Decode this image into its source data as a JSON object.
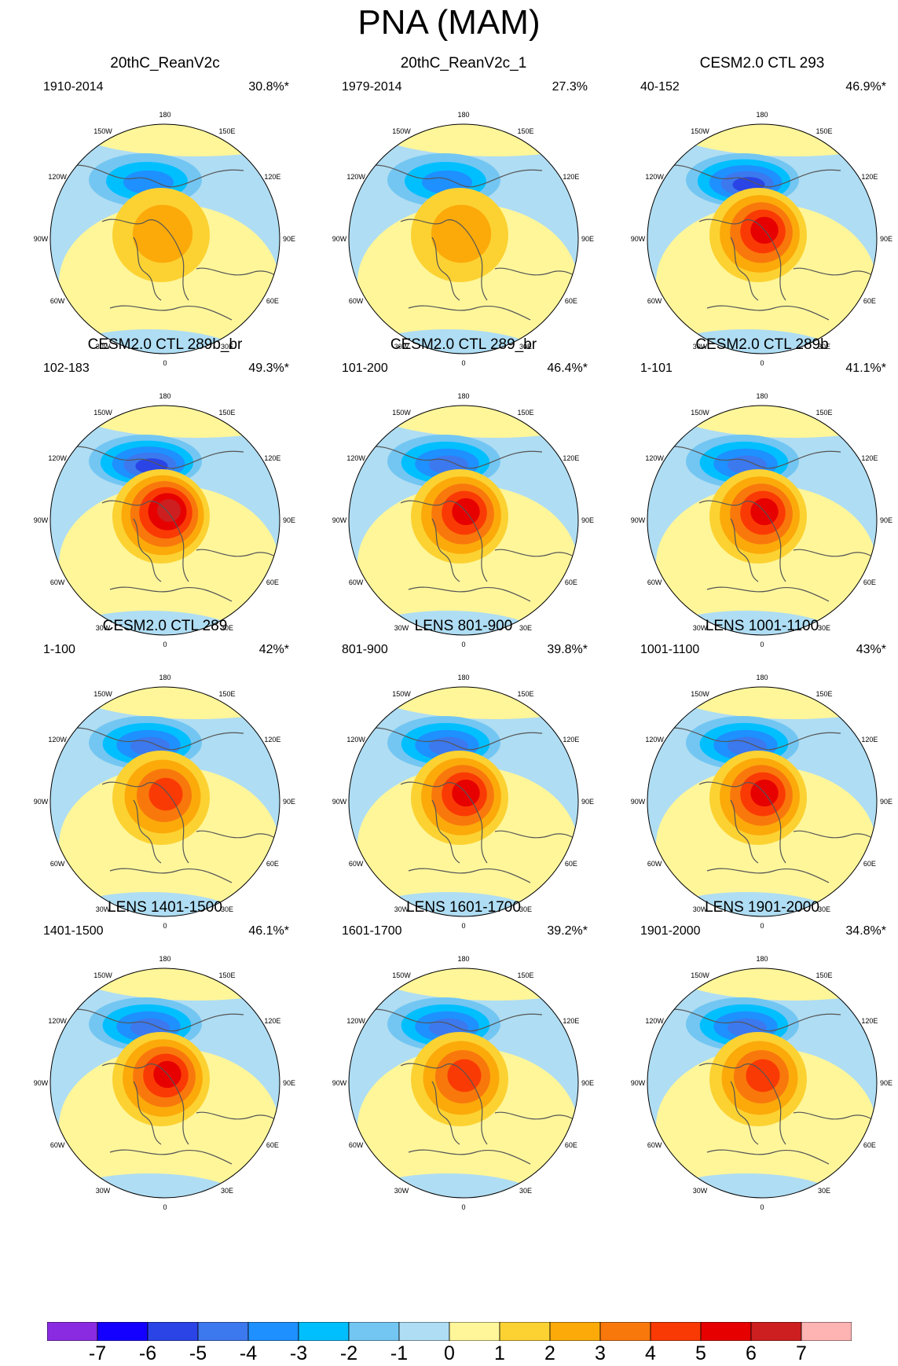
{
  "title": "PNA (MAM)",
  "lon_labels": [
    "180",
    "150E",
    "120E",
    "90E",
    "60E",
    "30E",
    "0",
    "30W",
    "60W",
    "90W",
    "120W",
    "150W"
  ],
  "colorbar": {
    "colors": [
      "#8a2be2",
      "#1400ff",
      "#2a44e6",
      "#3c78ee",
      "#1e90ff",
      "#00bfff",
      "#73c6f2",
      "#afddf3",
      "#fff69a",
      "#fcd232",
      "#fbaa0a",
      "#f9780c",
      "#fa3a04",
      "#e60000",
      "#cd1f1f",
      "#ffb4b4"
    ],
    "labels": [
      "-7",
      "-6",
      "-5",
      "-4",
      "-3",
      "-2",
      "-1",
      "0",
      "1",
      "2",
      "3",
      "4",
      "5",
      "6",
      "7"
    ]
  },
  "panels": [
    {
      "title": "20thC_ReanV2c",
      "years": "1910-2014",
      "pct": "30.8%*",
      "pattern": {
        "neg": 3,
        "pos": 2
      }
    },
    {
      "title": "20thC_ReanV2c_1",
      "years": "1979-2014",
      "pct": "27.3%",
      "pattern": {
        "neg": 3,
        "pos": 2
      }
    },
    {
      "title": "CESM2.0 CTL 293",
      "years": "40-152",
      "pct": "46.9%*",
      "pattern": {
        "neg": 5,
        "pos": 5
      }
    },
    {
      "title": "CESM2.0 CTL 289b_br",
      "years": "102-183",
      "pct": "49.3%*",
      "pattern": {
        "neg": 5,
        "pos": 6
      }
    },
    {
      "title": "CESM2.0 CTL 289_br",
      "years": "101-200",
      "pct": "46.4%*",
      "pattern": {
        "neg": 4,
        "pos": 5
      }
    },
    {
      "title": "CESM2.0 CTL 289b",
      "years": "1-101",
      "pct": "41.1%*",
      "pattern": {
        "neg": 4,
        "pos": 5
      }
    },
    {
      "title": "CESM2.0 CTL 289",
      "years": "1-100",
      "pct": "42%*",
      "pattern": {
        "neg": 4,
        "pos": 4
      }
    },
    {
      "title": "LENS 801-900",
      "years": "801-900",
      "pct": "39.8%*",
      "pattern": {
        "neg": 4,
        "pos": 5
      }
    },
    {
      "title": "LENS 1001-1100",
      "years": "1001-1100",
      "pct": "43%*",
      "pattern": {
        "neg": 4,
        "pos": 5
      }
    },
    {
      "title": "LENS 1401-1500",
      "years": "1401-1500",
      "pct": "46.1%*",
      "pattern": {
        "neg": 4,
        "pos": 5
      }
    },
    {
      "title": "LENS 1601-1700",
      "years": "1601-1700",
      "pct": "39.2%*",
      "pattern": {
        "neg": 4,
        "pos": 4
      }
    },
    {
      "title": "LENS 1901-2000",
      "years": "1901-2000",
      "pct": "34.8%*",
      "pattern": {
        "neg": 4,
        "pos": 4
      }
    }
  ]
}
